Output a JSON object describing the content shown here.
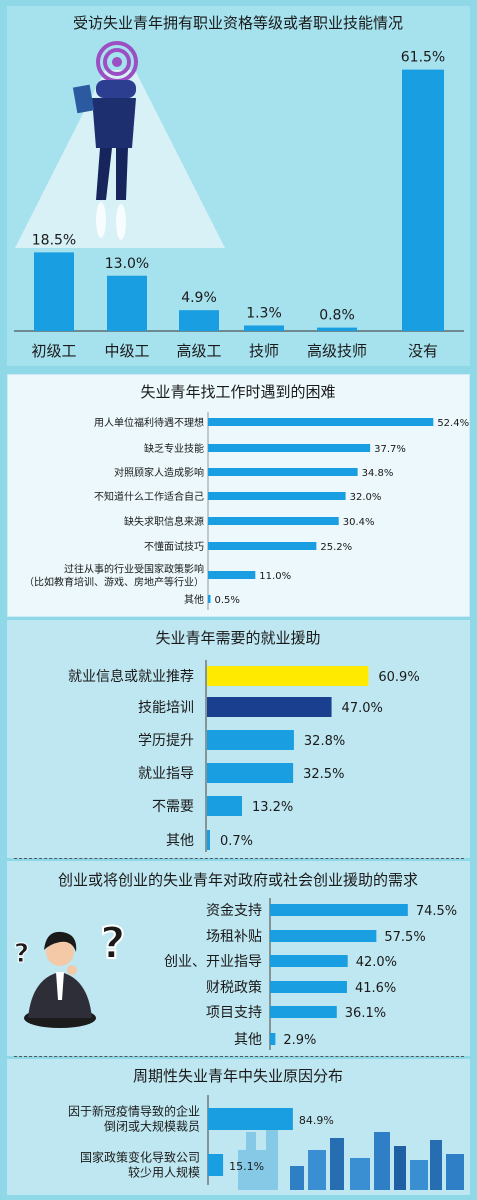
{
  "accent": "#1a9ee2",
  "highlight_yellow": "#ffea00",
  "highlight_navy": "#1b3f8f",
  "chart_data": [
    {
      "type": "bar",
      "title": "受访失业青年拥有职业资格等级或者职业技能情况",
      "categories": [
        "初级工",
        "中级工",
        "高级工",
        "技师",
        "高级技师",
        "没有"
      ],
      "values": [
        18.5,
        13.0,
        4.9,
        1.3,
        0.8,
        61.5
      ],
      "labels": [
        "18.5%",
        "13.0%",
        "4.9%",
        "1.3%",
        "0.8%",
        "61.5%"
      ]
    },
    {
      "type": "bar",
      "orientation": "horizontal",
      "title": "失业青年找工作时遇到的困难",
      "categories": [
        "用人单位福利待遇不理想",
        "缺乏专业技能",
        "对照顾家人造成影响",
        "不知道什么工作适合自己",
        "缺失求职信息来源",
        "不懂面试技巧",
        "过往从事的行业受国家政策影响\n（比如教育培训、游戏、房地产等行业）",
        "其他"
      ],
      "values": [
        52.4,
        37.7,
        34.8,
        32.0,
        30.4,
        25.2,
        11.0,
        0.5
      ],
      "labels": [
        "52.4%",
        "37.7%",
        "34.8%",
        "32.0%",
        "30.4%",
        "25.2%",
        "11.0%",
        "0.5%"
      ]
    },
    {
      "type": "bar",
      "orientation": "horizontal",
      "title": "失业青年需要的就业援助",
      "categories": [
        "就业信息或就业推荐",
        "技能培训",
        "学历提升",
        "就业指导",
        "不需要",
        "其他"
      ],
      "values": [
        60.9,
        47.0,
        32.8,
        32.5,
        13.2,
        0.7
      ],
      "labels": [
        "60.9%",
        "47.0%",
        "32.8%",
        "32.5%",
        "13.2%",
        "0.7%"
      ]
    },
    {
      "type": "bar",
      "orientation": "horizontal",
      "title": "创业或将创业的失业青年对政府或社会创业援助的需求",
      "categories": [
        "资金支持",
        "场租补贴",
        "创业、开业指导",
        "财税政策",
        "项目支持",
        "其他"
      ],
      "values": [
        74.5,
        57.5,
        42.0,
        41.6,
        36.1,
        2.9
      ],
      "labels": [
        "74.5%",
        "57.5%",
        "42.0%",
        "41.6%",
        "36.1%",
        "2.9%"
      ]
    },
    {
      "type": "bar",
      "orientation": "horizontal",
      "title": "周期性失业青年中失业原因分布",
      "categories": [
        "因于新冠疫情导致的企业\n倒闭或大规模裁员",
        "国家政策变化导致公司\n较少用人规模"
      ],
      "values": [
        84.9,
        15.1
      ],
      "labels": [
        "84.9%",
        "15.1%"
      ]
    }
  ],
  "icons": [
    "signal-icon",
    "businessman-illustration",
    "thinking-woman-illustration",
    "question-mark-icon",
    "city-skyline-illustration"
  ]
}
